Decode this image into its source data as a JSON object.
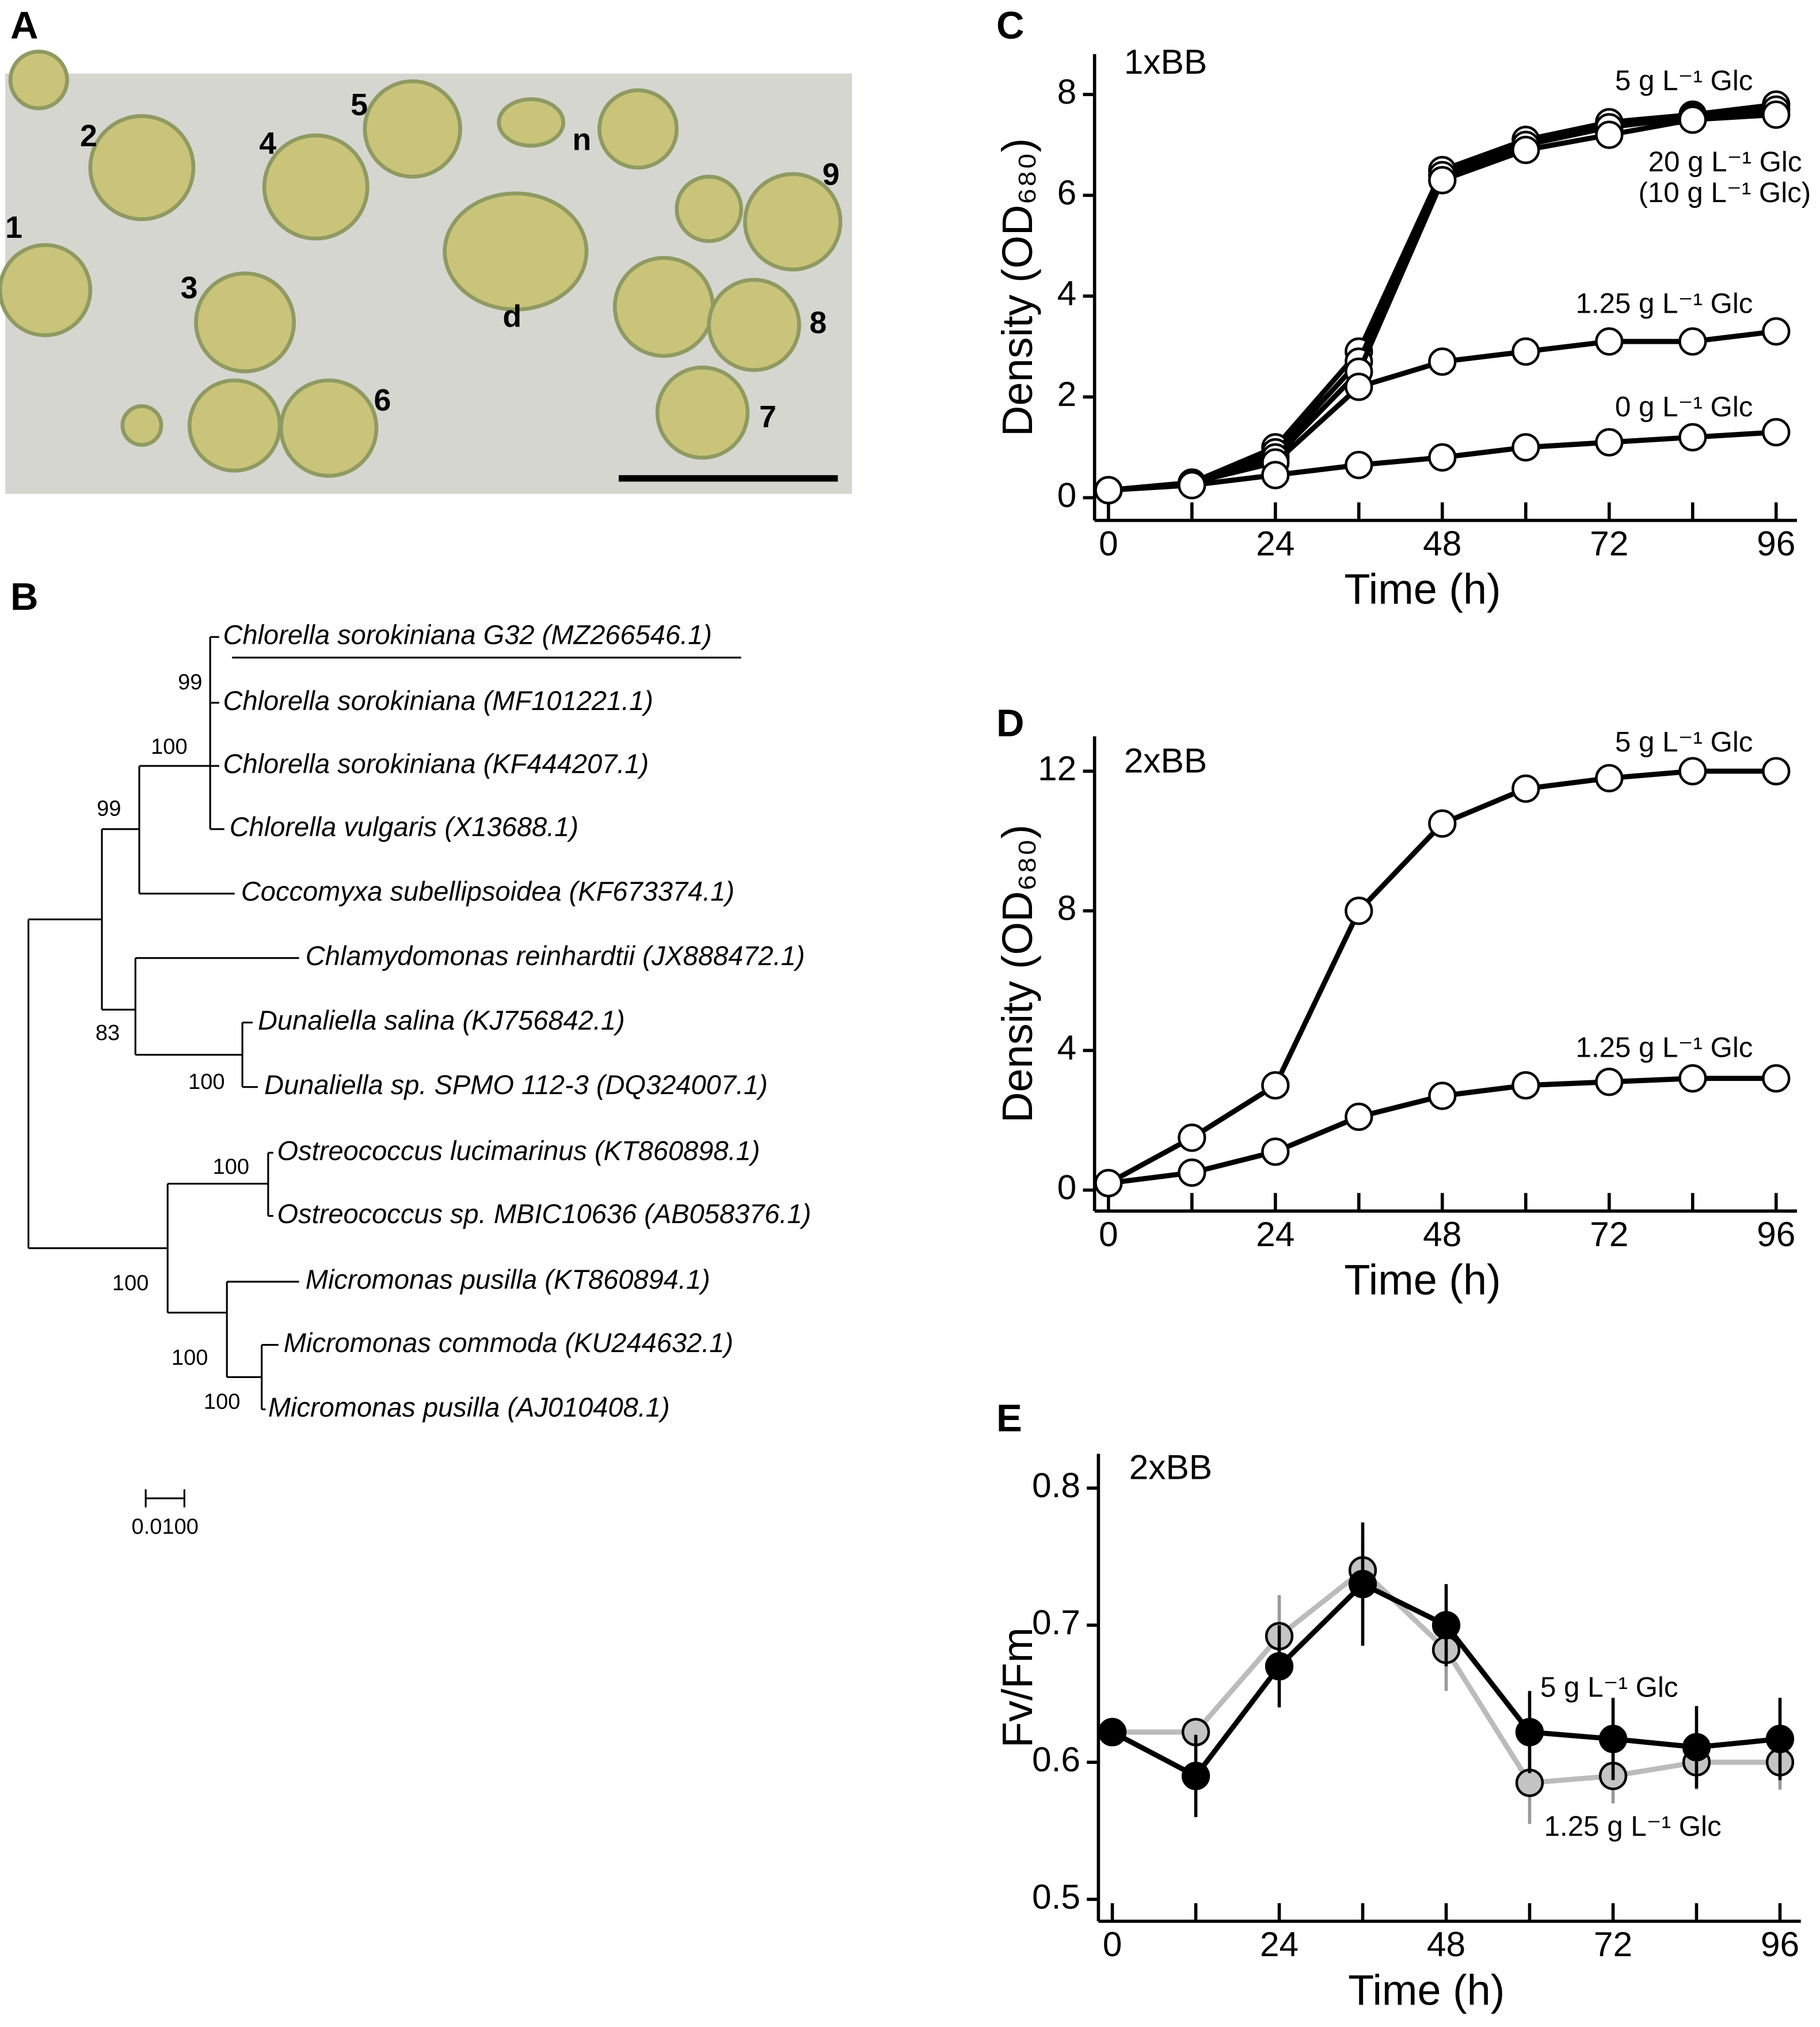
{
  "micrograph": {
    "panel_label": "A",
    "cell_labels": [
      "1",
      "2",
      "3",
      "4",
      "5",
      "6",
      "7",
      "8",
      "9",
      "n",
      "d"
    ]
  },
  "tree": {
    "panel_label": "B",
    "taxa": [
      "Chlorella sorokiniana G32 (MZ266546.1)",
      "Chlorella sorokiniana (MF101221.1)",
      "Chlorella sorokiniana (KF444207.1)",
      "Chlorella vulgaris (X13688.1)",
      "Coccomyxa subellipsoidea (KF673374.1)",
      "Chlamydomonas reinhardtii (JX888472.1)",
      "Dunaliella salina (KJ756842.1)",
      "Dunaliella sp. SPMO 112-3 (DQ324007.1)",
      "Ostreococcus lucimarinus (KT860898.1)",
      "Ostreococcus sp. MBIC10636 (AB058376.1)",
      "Micromonas pusilla (KT860894.1)",
      "Micromonas commoda (KU244632.1)",
      "Micromonas pusilla (AJ010408.1)"
    ],
    "bootstrap": [
      "99",
      "100",
      "99",
      "83",
      "100",
      "100",
      "100",
      "100",
      "100"
    ],
    "scale_label": "0.0100"
  },
  "chart_data": [
    {
      "type": "line",
      "panel_label": "C",
      "annotation": "1xBB",
      "y_label": "Density (OD₆₈₀)",
      "x_label": "Time (h)",
      "x": [
        0,
        12,
        24,
        36,
        48,
        60,
        72,
        84,
        96
      ],
      "series": [
        {
          "name": "5 g L⁻¹ Glc",
          "color": "#000000",
          "marker_fill": "#ffffff",
          "values": [
            0.15,
            0.3,
            1.0,
            2.9,
            6.5,
            7.1,
            7.45,
            7.6,
            7.8
          ]
        },
        {
          "name": "20 g L⁻¹ Glc",
          "color": "#000000",
          "marker_fill": "#ffffff",
          "values": [
            0.15,
            0.3,
            0.9,
            2.7,
            6.4,
            7.0,
            7.35,
            7.55,
            7.7
          ]
        },
        {
          "name": "(10 g L⁻¹ Glc)",
          "color": "#000000",
          "marker_fill": "#ffffff",
          "values": [
            0.15,
            0.3,
            0.8,
            2.5,
            6.3,
            6.9,
            7.2,
            7.5,
            7.6
          ]
        },
        {
          "name": "1.25 g L⁻¹ Glc",
          "color": "#000000",
          "marker_fill": "#ffffff",
          "values": [
            0.15,
            0.3,
            0.7,
            2.2,
            2.7,
            2.9,
            3.1,
            3.1,
            3.3
          ]
        },
        {
          "name": "0 g L⁻¹ Glc",
          "color": "#000000",
          "marker_fill": "#ffffff",
          "values": [
            0.15,
            0.25,
            0.45,
            0.65,
            0.8,
            1.0,
            1.1,
            1.2,
            1.3
          ]
        }
      ],
      "xlim": [
        -2,
        99
      ],
      "ylim": [
        -0.45,
        8.8
      ],
      "xticks": [
        0,
        24,
        48,
        72,
        96
      ],
      "xminorticks": [
        12,
        36,
        60,
        84
      ],
      "yticks": [
        0,
        2,
        4,
        6,
        8
      ]
    },
    {
      "type": "line",
      "panel_label": "D",
      "annotation": "2xBB",
      "y_label": "Density (OD₆₈₀)",
      "x_label": "Time (h)",
      "x": [
        0,
        12,
        24,
        36,
        48,
        60,
        72,
        84,
        96
      ],
      "series": [
        {
          "name": "5 g L⁻¹ Glc",
          "color": "#000000",
          "marker_fill": "#ffffff",
          "values": [
            0.2,
            1.5,
            3.0,
            8.0,
            10.5,
            11.5,
            11.8,
            12.0,
            12.0
          ]
        },
        {
          "name": "1.25 g L⁻¹ Glc",
          "color": "#000000",
          "marker_fill": "#ffffff",
          "values": [
            0.2,
            0.5,
            1.1,
            2.1,
            2.7,
            3.0,
            3.1,
            3.2,
            3.2
          ]
        }
      ],
      "xlim": [
        -2,
        99
      ],
      "ylim": [
        -0.6,
        13
      ],
      "xticks": [
        0,
        24,
        48,
        72,
        96
      ],
      "xminorticks": [
        12,
        36,
        60,
        84
      ],
      "yticks": [
        0,
        4,
        8,
        12
      ]
    },
    {
      "type": "line",
      "panel_label": "E",
      "annotation": "2xBB",
      "y_label": "Fv/Fm",
      "x_label": "Time (h)",
      "x": [
        0,
        12,
        24,
        36,
        48,
        60,
        72,
        84,
        96
      ],
      "series": [
        {
          "name": "1.25 g L⁻¹ Glc",
          "color": "#bbbbbb",
          "marker_fill": "#c4c4c4",
          "values": [
            0.622,
            0.622,
            0.692,
            0.74,
            0.682,
            0.585,
            0.59,
            0.6,
            0.6
          ],
          "errors": [
            0.01,
            0.01,
            0.03,
            0.02,
            0.03,
            0.03,
            0.02,
            0.02,
            0.02
          ]
        },
        {
          "name": "5 g L⁻¹ Glc",
          "color": "#000000",
          "marker_fill": "#000000",
          "values": [
            0.622,
            0.59,
            0.67,
            0.73,
            0.7,
            0.622,
            0.617,
            0.611,
            0.617
          ],
          "errors": [
            0.01,
            0.03,
            0.03,
            0.045,
            0.03,
            0.03,
            0.03,
            0.03,
            0.03
          ]
        }
      ],
      "xlim": [
        -2,
        99
      ],
      "ylim": [
        0.484,
        0.825
      ],
      "xticks": [
        0,
        24,
        48,
        72,
        96
      ],
      "xminorticks": [
        12,
        36,
        60,
        84
      ],
      "yticks": [
        0.5,
        0.6,
        0.7,
        0.8
      ]
    }
  ]
}
